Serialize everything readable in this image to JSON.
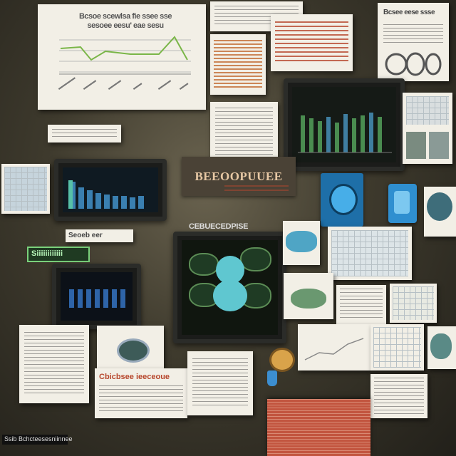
{
  "top_chart": {
    "title_line1": "Bcsoe scewlsa fie ssee sse",
    "title_line2": "sesoee eesu' eae sesu"
  },
  "banner_sign": "BEEOOPUUEE",
  "center_monitor_label": "CEBUECEDPISE",
  "poster_headline": "Cbicbsee ieeceoue",
  "green_tag": "Siiiiiiiiiiii",
  "strip_label": "Seoeb eer",
  "corner_caption": "Ssib Bchcteesesniinnee",
  "top_right_heading": "Bcsee eese ssse",
  "colors": {
    "background": "#3e3a2d",
    "paper": "#f2efe6",
    "accent_red": "#b7472d",
    "accent_blue": "#2f8fd0",
    "accent_teal": "#5fc7d0",
    "bar_green": "#4a8c50"
  }
}
